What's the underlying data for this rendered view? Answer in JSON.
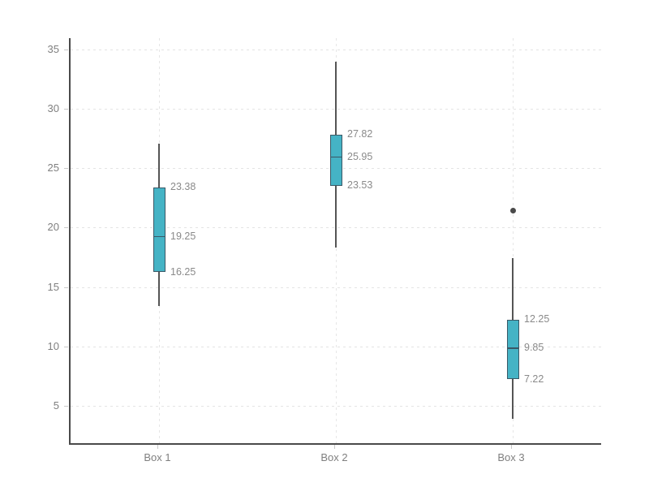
{
  "chart_data": {
    "type": "box",
    "title": "",
    "xlabel": "",
    "ylabel": "",
    "categories": [
      "Box 1",
      "Box 2",
      "Box 3"
    ],
    "series": [
      {
        "name": "Box 1",
        "whisker_low": 13.4,
        "q1": 16.25,
        "median": 19.25,
        "q3": 23.38,
        "whisker_high": 27.1,
        "outliers": [],
        "labels": {
          "q3": "23.38",
          "median": "19.25",
          "q1": "16.25"
        }
      },
      {
        "name": "Box 2",
        "whisker_low": 18.3,
        "q1": 23.53,
        "median": 25.95,
        "q3": 27.82,
        "whisker_high": 34.0,
        "outliers": [],
        "labels": {
          "q3": "27.82",
          "median": "25.95",
          "q1": "23.53"
        }
      },
      {
        "name": "Box 3",
        "whisker_low": 3.9,
        "q1": 7.22,
        "median": 9.85,
        "q3": 12.25,
        "whisker_high": 17.4,
        "outliers": [
          21.4
        ],
        "labels": {
          "q3": "12.25",
          "median": "9.85",
          "q1": "7.22"
        }
      }
    ],
    "y_ticks": [
      "5",
      "10",
      "15",
      "20",
      "25",
      "30",
      "35"
    ],
    "y_tick_values": [
      5,
      10,
      15,
      20,
      25,
      30,
      35
    ],
    "y_range": [
      1.85,
      35.95
    ],
    "grid": true,
    "legend": "none",
    "colors": {
      "box_fill": "#45b3c5",
      "box_border": "#3a5866",
      "whisker": "#555555",
      "outlier": "#4a4a4a",
      "axis_line": "#4a4a4a",
      "gridline": "#e4e4e4",
      "tick_label": "#7f7f7f",
      "value_label": "#8a8a8a"
    }
  }
}
